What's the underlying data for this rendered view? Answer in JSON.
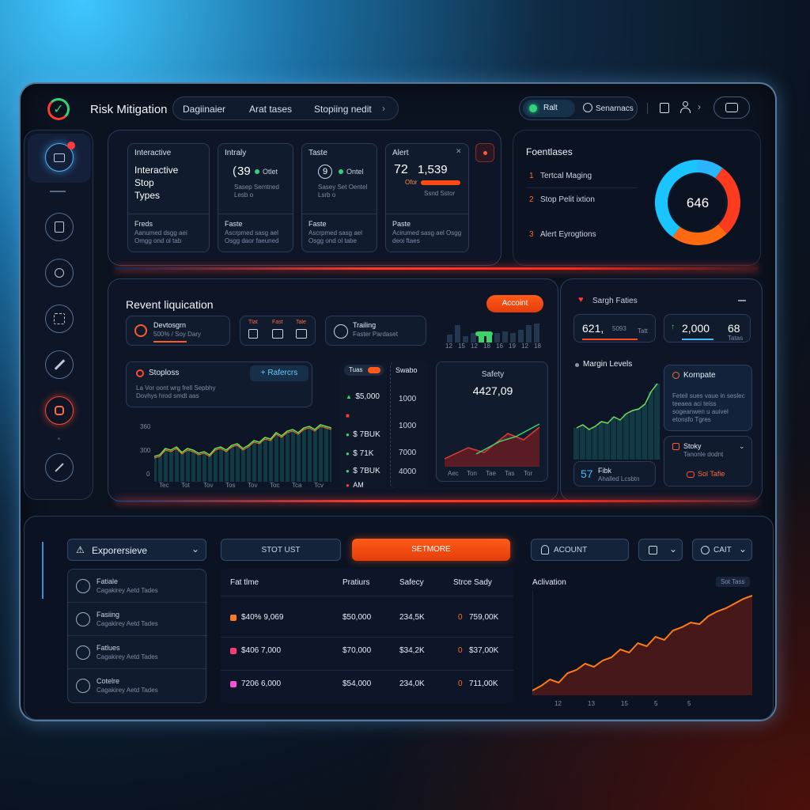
{
  "header": {
    "title": "Risk Mitigation",
    "tabs": [
      "Dagiinaier",
      "Arat tases",
      "Stopiing nedit"
    ],
    "toggle_left": "Ralt",
    "toggle_right": "Senarnacs",
    "more_label": "›"
  },
  "top_cards": [
    {
      "title": "Interactive",
      "big_lines": [
        "Interactive",
        "Stop",
        "Types"
      ],
      "footer_title": "Freds",
      "footer_text": "Aanumed dsgg aei Omgg ond ol tab"
    },
    {
      "title": "Intraly",
      "value": "39",
      "value_prefix": "(",
      "status": "Otlet",
      "sub": "Sasep Semtned Lesb o",
      "footer_title": "Faste",
      "footer_text": "Ascrpmed sasg ael Osgg daor faeuned"
    },
    {
      "title": "Taste",
      "value": "9",
      "value_prefix": "(",
      "status": "Ontel",
      "sub": "Sasey Set Oentel Lsrb o",
      "footer_title": "Faste",
      "footer_text": "Ascrpmed sasg ael Osgg ond ol tabe"
    },
    {
      "title": "Alert",
      "value": "72",
      "value2": "1,539",
      "badge": "Ofor",
      "sub": "Ssnd Sstor",
      "footer_title": "Paste",
      "footer_text": "Acirumed sasg ael Osgg deoi ftaes"
    }
  ],
  "focus": {
    "title": "Foentlases",
    "items": [
      {
        "num": "1",
        "label": "Tertcal Maging"
      },
      {
        "num": "2",
        "label": "Stop Pelit ixtion"
      },
      {
        "num": "3",
        "label": "Alert Eyrogtions"
      }
    ],
    "donut_value": "646",
    "donut_segments": [
      {
        "value": 10,
        "color": "#2ab6ff"
      },
      {
        "value": 28,
        "color": "#ff3b1f"
      },
      {
        "value": 22,
        "color": "#ff6a10"
      },
      {
        "value": 40,
        "color": "#19c4ff"
      }
    ]
  },
  "liquidation": {
    "title": "Revent liquication",
    "account_button": "Accoint",
    "dev_title": "Devtosgrn",
    "dev_sub": "500% / Soy Dary",
    "mini_labels": [
      "Tlat",
      "Fast",
      "Tale"
    ],
    "trailing_title": "Trailing",
    "trailing_sub": "Faster Pardaset",
    "bars_axis": [
      "12",
      "15",
      "12",
      "18",
      "16",
      "19",
      "12",
      "18"
    ],
    "stoploss_title": "Stoploss",
    "stoploss_button": "Rafercrs",
    "stoploss_text1": "La Vor oont wrg frell Sepbhy",
    "stoploss_text2": "Dovhys hrod smdt aas",
    "chart_y": [
      "360",
      "300",
      "0"
    ],
    "chart_x": [
      "Tec",
      "Tot",
      "Tov",
      "Tos",
      "Tov",
      "Toc",
      "Tca",
      "Tcv"
    ],
    "trades_header": "Tuas",
    "trades_header2": "Swabo",
    "trades": [
      {
        "icon": "▲",
        "color": "#3ad46a",
        "value": "$5,000"
      },
      {
        "icon": "■",
        "color": "#ff3b3b",
        "value": ""
      },
      {
        "icon": "●",
        "color": "#3ad46a",
        "value": "$ 7BUK"
      },
      {
        "icon": "●",
        "color": "#3ad46a",
        "value": "$ 71K"
      },
      {
        "icon": "●",
        "color": "#3ad46a",
        "value": "$ 7BUK"
      },
      {
        "icon": "●",
        "color": "#ff3b3b",
        "value": "AM"
      }
    ],
    "axis_right": [
      "1000",
      "1000",
      "7000",
      "4000"
    ],
    "safety_title": "Safety",
    "safety_value": "4427,09",
    "safety_x": [
      "Aec",
      "Ton",
      "Tae",
      "Tas",
      "Tor"
    ]
  },
  "margin": {
    "title": "Sargh Faties",
    "stat1_value": "621,",
    "stat1_unit": "5093",
    "stat1_tag": "Tatt",
    "stat2_value": "2,000",
    "stat2_value2": "68",
    "stat2_tag": "Tatas",
    "levels_title": "Margin Levels",
    "komp_title": "Kornpate",
    "komp_text": "Feteil sues vaue in seslec teeaea aci teiss sogeanwen u auivel etonsfo Tgres",
    "stop_title": "Stoky",
    "stop_sub": "Tanonle dodnt",
    "set_label": "Sol Tafie",
    "footer_value": "57",
    "footer_label": "Fibk",
    "footer_sub": "Ahalled Lcsbtn"
  },
  "bottom": {
    "dropdown": "Exporersieve",
    "btn_stop": "STOT UST",
    "btn_set": "SETMORE",
    "btn_account": "ACOUNT",
    "btn_cart": "CAIT",
    "list": [
      {
        "title": "Fatiale",
        "sub": "Cagakirey Aetd Tades"
      },
      {
        "title": "Fasiing",
        "sub": "Cagakirey Aetd Tades"
      },
      {
        "title": "Fatlues",
        "sub": "Cagakirey Aetd Tades"
      },
      {
        "title": "Cotelre",
        "sub": "Cagakirey Aetd Tades"
      }
    ],
    "table_headers": [
      "Fat tlme",
      "Pratiurs",
      "Safecy",
      "Strce Sady"
    ],
    "table_rows": [
      {
        "color": "#ff7a1a",
        "c1": "$40% 9,069",
        "c2": "$50,000",
        "c3": "234,5K",
        "c4_num": "0",
        "c4": "759,00K"
      },
      {
        "color": "#ff3b6e",
        "c1": "$406 7,000",
        "c2": "$70,000",
        "c3": "$34,2K",
        "c4_num": "0",
        "c4": "$37,00K"
      },
      {
        "color": "#ff4fd8",
        "c1": "7206 6,000",
        "c2": "$54,000",
        "c3": "234,0K",
        "c4_num": "0",
        "c4": "711,00K"
      }
    ],
    "activation_title": "Aclivation",
    "activation_tag": "Sot Tass",
    "activation_x": [
      "12",
      "13",
      "15",
      "5",
      "5"
    ]
  }
}
